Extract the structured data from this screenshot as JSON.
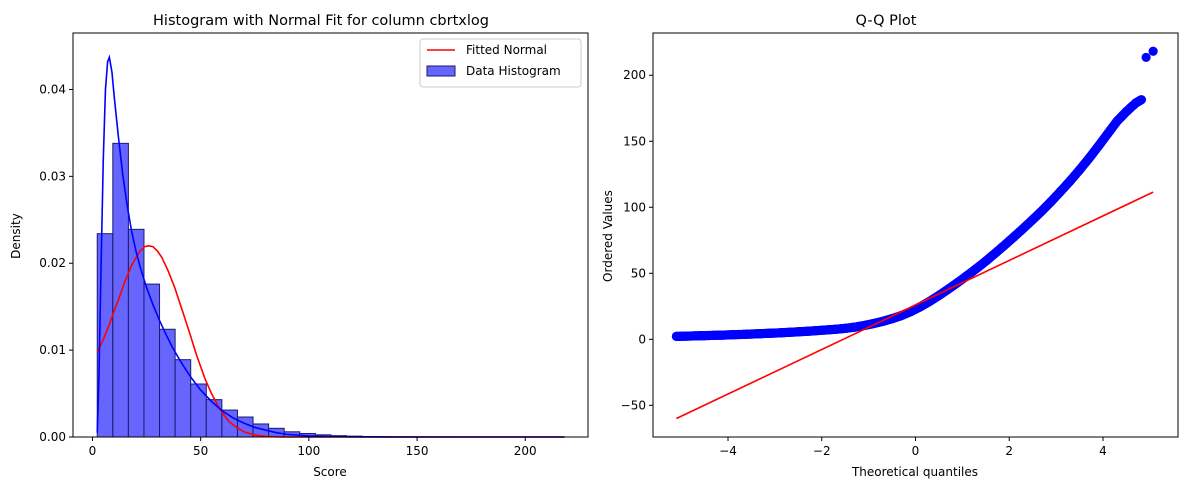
{
  "chart_data": [
    {
      "type": "bar",
      "title": "Histogram with Normal Fit for column cbrtxlog",
      "xlabel": "Score",
      "ylabel": "Density",
      "xlim": [
        -9,
        229
      ],
      "ylim": [
        0,
        0.0465
      ],
      "xticks": [
        0,
        50,
        100,
        150,
        200
      ],
      "yticks": [
        0.0,
        0.01,
        0.02,
        0.03,
        0.04
      ],
      "ytick_labels": [
        "0.00",
        "0.01",
        "0.02",
        "0.03",
        "0.04"
      ],
      "grid": false,
      "legend": {
        "position": "top-right",
        "entries": [
          "Fitted Normal",
          "Data Histogram"
        ]
      },
      "colors": {
        "histogram_fill": "#6666ff",
        "histogram_edge": "#1a1a6e",
        "kde": "#0000ff",
        "normal_fit": "#ff0000"
      },
      "histogram": {
        "name": "Data Histogram",
        "bin_edges": [
          2.2,
          9.4,
          16.6,
          23.8,
          31.0,
          38.2,
          45.4,
          52.6,
          59.8,
          67.0,
          74.2,
          81.4,
          88.6,
          95.8,
          103.0,
          110.2,
          117.4,
          124.6,
          131.8,
          139.0,
          146.2,
          153.4,
          160.6,
          167.8,
          175.0,
          182.2,
          189.4,
          196.6,
          203.8,
          211.0,
          218.2
        ],
        "densities": [
          0.0234,
          0.0338,
          0.0239,
          0.0176,
          0.0124,
          0.0089,
          0.0061,
          0.0043,
          0.0031,
          0.0023,
          0.0015,
          0.001,
          0.0006,
          0.0004,
          0.00025,
          0.00015,
          0.0001,
          6e-05,
          4e-05,
          3e-05,
          2e-05,
          1e-05,
          1e-05,
          0.0,
          0.0,
          0.0,
          0.0,
          0.0,
          0.0,
          0.0
        ]
      },
      "series": [
        {
          "name": "Fitted Normal",
          "x": [
            2.2,
            5,
            8,
            10,
            12,
            15,
            18,
            20,
            22,
            24,
            26,
            28,
            30,
            32,
            35,
            38,
            40,
            42,
            45,
            48,
            50,
            52,
            55,
            58,
            60,
            63,
            66,
            70,
            75,
            80,
            85,
            90,
            95,
            100,
            110,
            120,
            140,
            160,
            180,
            200,
            218.2
          ],
          "y": [
            0.0098,
            0.0112,
            0.0131,
            0.0145,
            0.0158,
            0.0179,
            0.0197,
            0.0206,
            0.0214,
            0.0219,
            0.022,
            0.0219,
            0.0214,
            0.0207,
            0.0191,
            0.0172,
            0.0157,
            0.0142,
            0.0119,
            0.0095,
            0.0081,
            0.0067,
            0.005,
            0.0036,
            0.0028,
            0.0018,
            0.0012,
            0.0006,
            0.00022,
            7e-05,
            2e-05,
            0.0,
            0.0,
            0.0,
            0.0,
            0.0,
            0.0,
            0.0,
            0.0,
            0.0,
            0.0
          ]
        },
        {
          "name": "KDE",
          "x": [
            2.2,
            3,
            4,
            5,
            6,
            7,
            7.8,
            9,
            10,
            12,
            14,
            16,
            18,
            20,
            22,
            25,
            28,
            31,
            34,
            37,
            40,
            43,
            46,
            50,
            55,
            60,
            65,
            70,
            75,
            80,
            85,
            90,
            100,
            110,
            120,
            140,
            160,
            180,
            200,
            218.2
          ],
          "y": [
            0.0005,
            0.007,
            0.02,
            0.032,
            0.04,
            0.0432,
            0.0437,
            0.042,
            0.0393,
            0.0345,
            0.0302,
            0.0267,
            0.0238,
            0.0215,
            0.0196,
            0.0172,
            0.0152,
            0.0134,
            0.0118,
            0.0103,
            0.009,
            0.0078,
            0.0067,
            0.0054,
            0.0041,
            0.003,
            0.0022,
            0.0016,
            0.0011,
            0.0008,
            0.0005,
            0.0003,
            0.00012,
            5e-05,
            2e-05,
            0.0,
            0.0,
            0.0,
            0.0,
            0.0
          ]
        }
      ]
    },
    {
      "type": "scatter",
      "title": "Q-Q Plot",
      "xlabel": "Theoretical quantiles",
      "ylabel": "Ordered Values",
      "xlim": [
        -5.6,
        5.6
      ],
      "ylim": [
        -74,
        232
      ],
      "xticks": [
        -4,
        -2,
        0,
        2,
        4
      ],
      "yticks": [
        -50,
        0,
        50,
        100,
        150,
        200
      ],
      "grid": false,
      "colors": {
        "points": "#0000ff",
        "fit_line": "#ff0000"
      },
      "series": [
        {
          "name": "Ordered Values",
          "x": [
            -5.1,
            -4.9,
            -4.7,
            -4.5,
            -4.3,
            -4.1,
            -3.9,
            -3.7,
            -3.5,
            -3.3,
            -3.1,
            -2.9,
            -2.7,
            -2.5,
            -2.3,
            -2.1,
            -1.9,
            -1.7,
            -1.5,
            -1.3,
            -1.1,
            -0.9,
            -0.7,
            -0.5,
            -0.3,
            -0.1,
            0.1,
            0.3,
            0.5,
            0.7,
            0.9,
            1.1,
            1.3,
            1.5,
            1.7,
            1.9,
            2.1,
            2.3,
            2.5,
            2.7,
            2.9,
            3.1,
            3.3,
            3.5,
            3.7,
            3.9,
            4.1,
            4.3,
            4.5,
            4.7,
            4.82,
            4.92,
            5.07
          ],
          "y": [
            2.2,
            2.4,
            2.6,
            2.8,
            3.0,
            3.2,
            3.5,
            3.7,
            4.0,
            4.3,
            4.6,
            4.9,
            5.3,
            5.7,
            6.1,
            6.6,
            7.1,
            7.6,
            8.3,
            9.2,
            10.4,
            11.9,
            13.6,
            15.6,
            18.0,
            21.0,
            24.6,
            28.7,
            33.2,
            38.0,
            43.0,
            48.2,
            53.6,
            59.2,
            65.2,
            71.3,
            77.6,
            84.0,
            90.6,
            97.4,
            104.6,
            112.2,
            120.0,
            128.3,
            137.0,
            146.2,
            155.7,
            165.2,
            172.5,
            179.0,
            181.5,
            213.5,
            218.2
          ]
        },
        {
          "name": "Fit Line",
          "x": [
            -5.1,
            5.07
          ],
          "y": [
            -60.0,
            111.5
          ]
        }
      ]
    }
  ]
}
